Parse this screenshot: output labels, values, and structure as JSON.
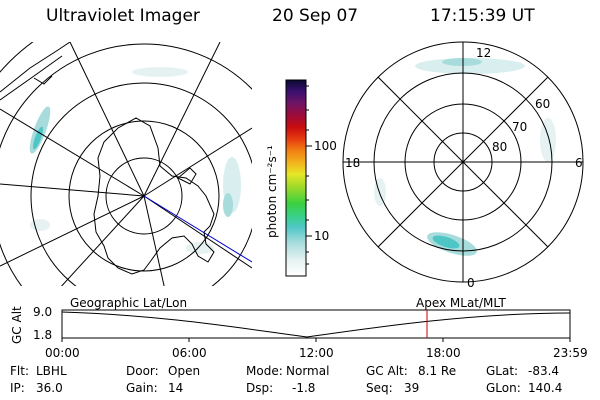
{
  "header": {
    "instrument": "Ultraviolet Imager",
    "date": "20 Sep 07",
    "time": "17:15:39 UT"
  },
  "colorbar": {
    "unit_label": "photon cm⁻²s⁻¹",
    "tick_100": "100",
    "tick_10": "10"
  },
  "polar_plot": {
    "label_12": "12",
    "label_6": "6",
    "label_18": "18",
    "label_0": "0",
    "lat_60": "60",
    "lat_70": "70",
    "lat_80": "80"
  },
  "timeline": {
    "axis_label": "GC Alt",
    "left_caption": "Geographic Lat/Lon",
    "right_caption": "Apex MLat/MLT",
    "y_top": "9.0",
    "y_bottom": "1.8",
    "x_ticks": [
      "00:00",
      "06:00",
      "12:00",
      "18:00",
      "23:59"
    ]
  },
  "footer": {
    "row1": [
      {
        "key": "Flt:",
        "val": "LBHL"
      },
      {
        "key": "Door:",
        "val": "Open"
      },
      {
        "key": "Mode:",
        "val": "Normal"
      },
      {
        "key": "GC Alt:",
        "val": "8.1 Re"
      },
      {
        "key": "GLat:",
        "val": "-83.4"
      }
    ],
    "row2": [
      {
        "key": "IP:",
        "val": "36.0"
      },
      {
        "key": "Gain:",
        "val": "14"
      },
      {
        "key": "Dsp:",
        "val": "-1.8"
      },
      {
        "key": "Seq:",
        "val": "39"
      },
      {
        "key": "GLon:",
        "val": "140.4"
      }
    ]
  },
  "colors": {
    "aurora": "#a8dcdc",
    "aurora_bright": "#4fc6c6",
    "time_marker": "#cc0000",
    "sun_line": "#0000cc"
  }
}
